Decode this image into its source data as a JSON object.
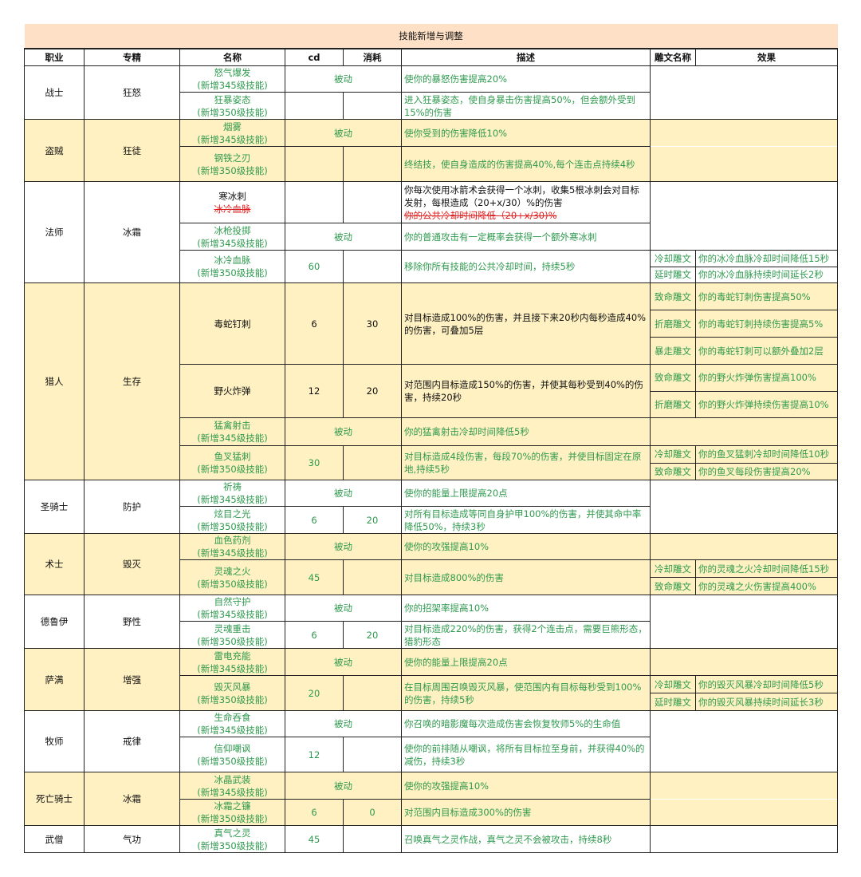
{
  "title": "技能新增与调整",
  "headers": [
    "职业",
    "专精",
    "名称",
    "cd",
    "消耗",
    "描述",
    "雕文名称",
    "效果"
  ],
  "colors": {
    "header_bg": "#fde0c6",
    "alt_row_bg": "#fff1c2",
    "green_text": "#2f9a4f",
    "strike_red": "#e02020"
  },
  "passive_label": "被动",
  "classes": [
    {
      "name": "战士",
      "spec": "狂怒",
      "shade": "w",
      "skills": [
        {
          "name": "怒气爆发",
          "note": "(新增345级技能)",
          "passive": true,
          "desc": "使你的暴怒伤害提高20%",
          "glyphs": []
        },
        {
          "name": "狂暴姿态",
          "note": "(新增350级技能)",
          "cd": "",
          "cost": "",
          "desc": "进入狂暴姿态，使自身暴击伤害提高50%，但会额外受到15%的伤害",
          "glyphs": []
        }
      ]
    },
    {
      "name": "盗贼",
      "spec": "狂徒",
      "shade": "y",
      "skills": [
        {
          "name": "烟雾",
          "note": "(新增345级技能)",
          "passive": true,
          "desc": "使你受到的伤害降低10%",
          "glyphs": []
        },
        {
          "name": "钢铁之刃",
          "note": "(新增350级技能)",
          "cd": "",
          "cost": "",
          "desc": "终结技，使自身造成的伤害提高40%,每个连击点持续4秒",
          "glyphs": []
        }
      ]
    },
    {
      "name": "法师",
      "spec": "冰霜",
      "shade": "w",
      "skills": [
        {
          "name": "寒冰刺",
          "black": true,
          "struck_name": "冰冷血脉",
          "cd": "",
          "cost": "",
          "desc": "你每次使用冰箭术会获得一个冰刺，收集5根冰刺会对目标发射，每根造成（20+x/30）%的伤害",
          "struck_desc": "你的公共冷却时间降低（20+x/30)%",
          "glyphs": []
        },
        {
          "name": "冰枪投掷",
          "note": "(新增345级技能)",
          "passive": true,
          "desc": "你的普通攻击有一定概率会获得一个额外寒冰刺",
          "glyphs": []
        },
        {
          "name": "冰冷血脉",
          "note": "(新增350级技能)",
          "cd": "60",
          "cost": "",
          "desc": "移除你所有技能的公共冷却时间，持续5秒",
          "glyphs": [
            {
              "name": "冷却雕文",
              "effect": "你的冰冷血脉冷却时间降低15秒"
            },
            {
              "name": "延时雕文",
              "effect": "你的冰冷血脉持续时间延长2秒"
            }
          ]
        }
      ]
    },
    {
      "name": "猎人",
      "spec": "生存",
      "shade": "y",
      "skills": [
        {
          "name": "毒蛇钉刺",
          "black": true,
          "cd": "6",
          "cost": "30",
          "desc": "对目标造成100%的伤害，并且接下来20秒内每秒造成40%的伤害，可叠加5层",
          "glyphs": [
            {
              "name": "致命雕文",
              "effect": "你的毒蛇钉刺伤害提高50%"
            },
            {
              "name": "折磨雕文",
              "effect": "你的毒蛇钉刺持续伤害提高5%"
            },
            {
              "name": "暴走雕文",
              "effect": "你的毒蛇钉刺可以额外叠加2层"
            }
          ]
        },
        {
          "name": "野火炸弹",
          "black": true,
          "cd": "12",
          "cost": "20",
          "desc": "对范围内目标造成150%的伤害，并使其每秒受到40%的伤害，持续20秒",
          "glyphs": [
            {
              "name": "致命雕文",
              "effect": "你的野火炸弹伤害提高100%"
            },
            {
              "name": "折磨雕文",
              "effect": "你的野火炸弹持续伤害提高10%"
            }
          ]
        },
        {
          "name": "猛禽射击",
          "note": "(新增345级技能)",
          "passive": true,
          "desc": "你的猛禽射击冷却时间降低5秒",
          "glyphs": []
        },
        {
          "name": "鱼叉猛刺",
          "note": "(新增350级技能)",
          "cd": "30",
          "cost": "",
          "desc": "对目标造成4段伤害，每段70%的伤害，并使目标固定在原地,持续5秒",
          "glyphs": [
            {
              "name": "冷却雕文",
              "effect": "你的鱼叉猛刺冷却时间降低10秒"
            },
            {
              "name": "致命雕文",
              "effect": "你的鱼叉每段伤害提高20%"
            }
          ]
        }
      ]
    },
    {
      "name": "圣骑士",
      "spec": "防护",
      "shade": "w",
      "skills": [
        {
          "name": "祈祷",
          "note": "(新增345级技能)",
          "passive": true,
          "desc": "使你的能量上限提高20点",
          "glyphs": []
        },
        {
          "name": "炫目之光",
          "note": "(新增350级技能)",
          "cd": "6",
          "cost": "20",
          "desc": "对所有目标造成等同自身护甲100%的伤害，并使其命中率降低50%，持续3秒",
          "glyphs": []
        }
      ]
    },
    {
      "name": "术士",
      "spec": "毁灭",
      "shade": "y",
      "skills": [
        {
          "name": "血色药剂",
          "note": "(新增345级技能)",
          "passive": true,
          "desc": "使你的攻强提高10%",
          "glyphs": []
        },
        {
          "name": "灵魂之火",
          "note": "(新增350级技能)",
          "cd": "45",
          "cost": "",
          "desc": "对目标造成800%的伤害",
          "glyphs": [
            {
              "name": "冷却雕文",
              "effect": "你的灵魂之火冷却时间降低15秒"
            },
            {
              "name": "致命雕文",
              "effect": "你的灵魂之火伤害提高400%"
            }
          ]
        }
      ]
    },
    {
      "name": "德鲁伊",
      "spec": "野性",
      "shade": "w",
      "skills": [
        {
          "name": "自然守护",
          "note": "(新增345级技能)",
          "passive": true,
          "desc": "你的招架率提高10%",
          "glyphs": []
        },
        {
          "name": "灵魂重击",
          "note": "(新增350级技能)",
          "cd": "6",
          "cost": "20",
          "desc": "对目标造成220%的伤害，获得2个连击点，需要巨熊形态，猎豹形态",
          "glyphs": []
        }
      ]
    },
    {
      "name": "萨满",
      "spec": "增强",
      "shade": "y",
      "skills": [
        {
          "name": "雷电充能",
          "note": "(新增345级技能)",
          "passive": true,
          "desc": "使你的能量上限提高20点",
          "glyphs": []
        },
        {
          "name": "毁灭风暴",
          "note": "(新增350级技能)",
          "cd": "20",
          "cost": "",
          "desc": "在目标周围召唤毁灭风暴，使范围内有目标每秒受到100%的伤害，持续5秒",
          "glyphs": [
            {
              "name": "冷却雕文",
              "effect": "你的毁灭风暴冷却时间降低5秒"
            },
            {
              "name": "延时雕文",
              "effect": "你的毁灭风暴持续时间延长3秒"
            }
          ]
        }
      ]
    },
    {
      "name": "牧师",
      "spec": "戒律",
      "shade": "w",
      "skills": [
        {
          "name": "生命吞食",
          "note": "(新增345级技能)",
          "passive": true,
          "desc": "你召唤的暗影魔每次造成伤害会恢复牧师5%的生命值",
          "glyphs": []
        },
        {
          "name": "信仰嘲讽",
          "note": "(新增350级技能)",
          "cd": "12",
          "cost": "",
          "desc": "使你的前排随从嘲讽，将所有目标拉至身前，并获得40%的减伤，持续3秒",
          "glyphs": []
        }
      ]
    },
    {
      "name": "死亡骑士",
      "spec": "冰霜",
      "shade": "y",
      "skills": [
        {
          "name": "冰晶武装",
          "note": "(新增345级技能)",
          "passive": true,
          "desc": "使你的攻强提高10%",
          "glyphs": []
        },
        {
          "name": "冰霜之镰",
          "note": "(新增350级技能)",
          "cd": "6",
          "cost": "0",
          "desc": "对范围内目标造成300%的伤害",
          "glyphs": []
        }
      ]
    },
    {
      "name": "武僧",
      "spec": "气功",
      "shade": "w",
      "skills": [
        {
          "name": "真气之灵",
          "note": "(新增350级技能)",
          "cd": "45",
          "cost": "",
          "desc": "召唤真气之灵作战，真气之灵不会被攻击，持续8秒",
          "glyphs": []
        }
      ]
    }
  ]
}
